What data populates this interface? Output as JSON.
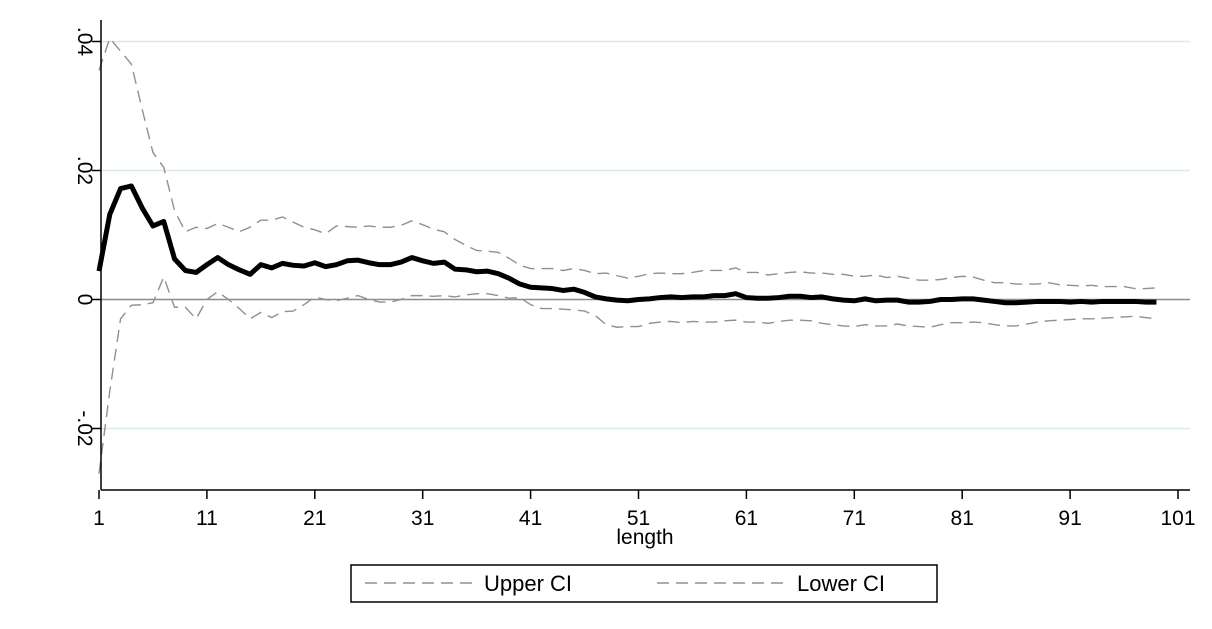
{
  "chart_data": {
    "type": "line",
    "title": "",
    "xlabel": "length",
    "ylabel": "",
    "xlim": [
      1,
      101
    ],
    "ylim": [
      -0.0285,
      0.0405
    ],
    "x_ticks": [
      1,
      11,
      21,
      31,
      41,
      51,
      61,
      71,
      81,
      91,
      101
    ],
    "y_ticks": [
      -0.02,
      0,
      0.02,
      0.04
    ],
    "y_tick_labels": [
      "-.02",
      "0",
      ".02",
      ".04"
    ],
    "grid": "horizontal",
    "reference_line_y": 0,
    "legend_position": "bottom",
    "colors": {
      "main_line": "#000000",
      "ci_lines": "#909090",
      "grid": "#dbe8ec",
      "zero_line": "#8c8c8c",
      "axis": "#000000"
    },
    "x": [
      1,
      2,
      3,
      4,
      5,
      6,
      7,
      8,
      9,
      10,
      11,
      12,
      13,
      14,
      15,
      16,
      17,
      18,
      19,
      20,
      21,
      22,
      23,
      24,
      25,
      26,
      27,
      28,
      29,
      30,
      31,
      32,
      33,
      34,
      35,
      36,
      37,
      38,
      39,
      40,
      41,
      42,
      43,
      44,
      45,
      46,
      47,
      48,
      49,
      50,
      51,
      52,
      53,
      54,
      55,
      56,
      57,
      58,
      59,
      60,
      61,
      62,
      63,
      64,
      65,
      66,
      67,
      68,
      69,
      70,
      71,
      72,
      73,
      74,
      75,
      76,
      77,
      78,
      79,
      80,
      81,
      82,
      83,
      84,
      85,
      86,
      87,
      88,
      89,
      90,
      91,
      92,
      93,
      94,
      95,
      96,
      97,
      98,
      99
    ],
    "main_series": [
      0.0044,
      0.0132,
      0.0172,
      0.0176,
      0.0142,
      0.0114,
      0.0121,
      0.0063,
      0.0045,
      0.0042,
      0.0054,
      0.0065,
      0.0054,
      0.0046,
      0.0039,
      0.0054,
      0.0049,
      0.0056,
      0.0053,
      0.0052,
      0.0057,
      0.0051,
      0.0054,
      0.006,
      0.0061,
      0.0057,
      0.0054,
      0.0054,
      0.0058,
      0.0065,
      0.006,
      0.0056,
      0.0058,
      0.0047,
      0.0046,
      0.0043,
      0.0044,
      0.004,
      0.0033,
      0.0024,
      0.0019,
      0.0018,
      0.0017,
      0.0014,
      0.0016,
      0.0011,
      0.0004,
      0.0001,
      -0.0001,
      -0.0002,
      0.0,
      0.0001,
      0.0003,
      0.0004,
      0.0003,
      0.0004,
      0.0004,
      0.0006,
      0.0006,
      0.0009,
      0.0003,
      0.0002,
      0.0002,
      0.0003,
      0.0005,
      0.0005,
      0.0003,
      0.0004,
      0.0001,
      -0.0001,
      -0.0002,
      0.0001,
      -0.0002,
      -0.0001,
      -0.0001,
      -0.0004,
      -0.0004,
      -0.0003,
      0.0,
      0.0,
      0.0001,
      0.0001,
      -0.0001,
      -0.0003,
      -0.0005,
      -0.0005,
      -0.0004,
      -0.0003,
      -0.0003,
      -0.0003,
      -0.0004,
      -0.0003,
      -0.0004,
      -0.0003,
      -0.0003,
      -0.0003,
      -0.0003,
      -0.0004,
      -0.0004
    ],
    "series": [
      {
        "name": "Upper CI",
        "values": [
          0.0355,
          0.0405,
          0.0385,
          0.0365,
          0.0295,
          0.0228,
          0.0205,
          0.0138,
          0.0105,
          0.0112,
          0.011,
          0.0118,
          0.0112,
          0.0105,
          0.0112,
          0.0123,
          0.0123,
          0.0128,
          0.012,
          0.0112,
          0.0108,
          0.0102,
          0.0114,
          0.0113,
          0.0112,
          0.0114,
          0.0112,
          0.0112,
          0.0115,
          0.0122,
          0.0116,
          0.0109,
          0.0105,
          0.0093,
          0.0084,
          0.0076,
          0.0075,
          0.0073,
          0.0064,
          0.0053,
          0.0048,
          0.0048,
          0.0048,
          0.0045,
          0.0048,
          0.0045,
          0.004,
          0.0041,
          0.0037,
          0.0033,
          0.0036,
          0.004,
          0.0041,
          0.004,
          0.004,
          0.0042,
          0.0045,
          0.0045,
          0.0045,
          0.0049,
          0.0042,
          0.0042,
          0.0038,
          0.004,
          0.0042,
          0.0043,
          0.0041,
          0.0041,
          0.0039,
          0.0039,
          0.0036,
          0.0036,
          0.0038,
          0.0034,
          0.0036,
          0.0033,
          0.003,
          0.003,
          0.0031,
          0.0034,
          0.0036,
          0.0035,
          0.003,
          0.0026,
          0.0026,
          0.0024,
          0.0024,
          0.0024,
          0.0026,
          0.0023,
          0.0022,
          0.0021,
          0.0022,
          0.002,
          0.002,
          0.002,
          0.0017,
          0.0017,
          0.0018
        ]
      },
      {
        "name": "Lower CI",
        "values": [
          -0.027,
          -0.0142,
          -0.003,
          -0.0009,
          -0.0008,
          -0.0005,
          0.0035,
          -0.0012,
          -0.0012,
          -0.003,
          0.0,
          0.0012,
          0.0,
          -0.0014,
          -0.003,
          -0.002,
          -0.0028,
          -0.0019,
          -0.0018,
          -0.0008,
          0.0004,
          0.0,
          -0.0002,
          0.0002,
          0.0006,
          0.0,
          -0.0004,
          -0.0004,
          0.0,
          0.0006,
          0.0006,
          0.0005,
          0.0006,
          0.0004,
          0.0007,
          0.0009,
          0.0009,
          0.0006,
          0.0002,
          0.0003,
          -0.0008,
          -0.0014,
          -0.0014,
          -0.0015,
          -0.0016,
          -0.0018,
          -0.0025,
          -0.0039,
          -0.0043,
          -0.0042,
          -0.0042,
          -0.0037,
          -0.0035,
          -0.0034,
          -0.0036,
          -0.0034,
          -0.0035,
          -0.0035,
          -0.0033,
          -0.0032,
          -0.0035,
          -0.0035,
          -0.0037,
          -0.0034,
          -0.0032,
          -0.0032,
          -0.0033,
          -0.0037,
          -0.0039,
          -0.0041,
          -0.0042,
          -0.0039,
          -0.0041,
          -0.0041,
          -0.0038,
          -0.0041,
          -0.0042,
          -0.0043,
          -0.0039,
          -0.0036,
          -0.0036,
          -0.0035,
          -0.0036,
          -0.0039,
          -0.0041,
          -0.0041,
          -0.0038,
          -0.0035,
          -0.0033,
          -0.0032,
          -0.0031,
          -0.003,
          -0.003,
          -0.0029,
          -0.0028,
          -0.0027,
          -0.0026,
          -0.0028,
          -0.003
        ]
      }
    ]
  }
}
